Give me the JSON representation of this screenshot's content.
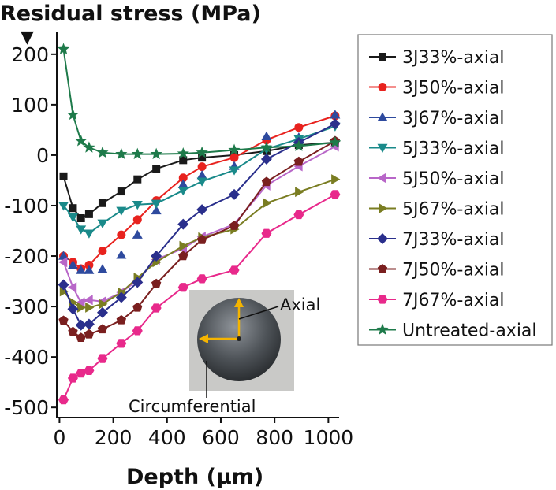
{
  "chart_data": {
    "type": "line",
    "ylabel": "Residual stress (MPa)",
    "xlabel": "Depth (µm)",
    "xlim": [
      -10,
      1040
    ],
    "ylim": [
      -520,
      245
    ],
    "xticks": [
      0,
      200,
      400,
      600,
      800,
      1000
    ],
    "xtick_labels": [
      "0",
      "200",
      "400",
      "600",
      "800",
      "1000"
    ],
    "yticks": [
      200,
      100,
      0,
      -100,
      -200,
      -300,
      -400,
      -500
    ],
    "ytick_labels": [
      "200",
      "100",
      "0",
      "-100",
      "-200",
      "-300",
      "-400",
      "-500"
    ],
    "y_marker": "▼",
    "legend_position": "right",
    "series": [
      {
        "name": "3J33%-axial",
        "color": "#1a1a1a",
        "marker": "square",
        "line": true,
        "points": [
          [
            15,
            -42
          ],
          [
            50,
            -105
          ],
          [
            80,
            -125
          ],
          [
            110,
            -117
          ],
          [
            160,
            -95
          ],
          [
            230,
            -72
          ],
          [
            290,
            -48
          ],
          [
            360,
            -27
          ],
          [
            460,
            -10
          ],
          [
            530,
            -5
          ],
          [
            650,
            0
          ],
          [
            770,
            8
          ],
          [
            890,
            20
          ],
          [
            1025,
            25
          ]
        ]
      },
      {
        "name": "3J50%-axial",
        "color": "#e8221e",
        "marker": "circle",
        "line": true,
        "points": [
          [
            15,
            -200
          ],
          [
            50,
            -212
          ],
          [
            80,
            -225
          ],
          [
            110,
            -218
          ],
          [
            160,
            -190
          ],
          [
            230,
            -158
          ],
          [
            290,
            -128
          ],
          [
            360,
            -90
          ],
          [
            460,
            -45
          ],
          [
            530,
            -23
          ],
          [
            650,
            -5
          ],
          [
            770,
            30
          ],
          [
            890,
            55
          ],
          [
            1025,
            78
          ]
        ]
      },
      {
        "name": "3J67%-axial",
        "color": "#2e4a9e",
        "marker": "triangle-up",
        "line": false,
        "points": [
          [
            15,
            -200
          ],
          [
            50,
            -218
          ],
          [
            80,
            -228
          ],
          [
            110,
            -228
          ],
          [
            160,
            -226
          ],
          [
            230,
            -198
          ],
          [
            290,
            -158
          ],
          [
            360,
            -110
          ],
          [
            460,
            -58
          ],
          [
            530,
            -40
          ],
          [
            650,
            -22
          ],
          [
            770,
            37
          ],
          [
            890,
            35
          ],
          [
            1025,
            80
          ]
        ]
      },
      {
        "name": "5J33%-axial",
        "color": "#1a8a8a",
        "marker": "triangle-down",
        "line": true,
        "points": [
          [
            15,
            -100
          ],
          [
            50,
            -123
          ],
          [
            80,
            -147
          ],
          [
            110,
            -155
          ],
          [
            160,
            -135
          ],
          [
            230,
            -110
          ],
          [
            290,
            -98
          ],
          [
            360,
            -96
          ],
          [
            460,
            -70
          ],
          [
            530,
            -52
          ],
          [
            650,
            -30
          ],
          [
            770,
            12
          ],
          [
            890,
            32
          ],
          [
            1025,
            57
          ]
        ]
      },
      {
        "name": "5J50%-axial",
        "color": "#b866c8",
        "marker": "triangle-left",
        "line": true,
        "points": [
          [
            15,
            -212
          ],
          [
            50,
            -262
          ],
          [
            80,
            -292
          ],
          [
            110,
            -287
          ],
          [
            160,
            -290
          ],
          [
            230,
            -272
          ],
          [
            290,
            -248
          ],
          [
            360,
            -207
          ],
          [
            460,
            -185
          ],
          [
            530,
            -162
          ],
          [
            650,
            -137
          ],
          [
            770,
            -60
          ],
          [
            890,
            -22
          ],
          [
            1025,
            17
          ]
        ]
      },
      {
        "name": "5J67%-axial",
        "color": "#7a7d22",
        "marker": "triangle-right",
        "line": true,
        "points": [
          [
            15,
            -270
          ],
          [
            50,
            -292
          ],
          [
            80,
            -302
          ],
          [
            110,
            -302
          ],
          [
            160,
            -295
          ],
          [
            230,
            -272
          ],
          [
            290,
            -243
          ],
          [
            360,
            -212
          ],
          [
            460,
            -180
          ],
          [
            530,
            -163
          ],
          [
            650,
            -147
          ],
          [
            770,
            -95
          ],
          [
            890,
            -73
          ],
          [
            1025,
            -48
          ]
        ]
      },
      {
        "name": "7J33%-axial",
        "color": "#2a2f8c",
        "marker": "diamond",
        "line": true,
        "points": [
          [
            15,
            -257
          ],
          [
            50,
            -305
          ],
          [
            80,
            -337
          ],
          [
            110,
            -335
          ],
          [
            160,
            -312
          ],
          [
            230,
            -282
          ],
          [
            290,
            -252
          ],
          [
            360,
            -200
          ],
          [
            460,
            -137
          ],
          [
            530,
            -108
          ],
          [
            650,
            -78
          ],
          [
            770,
            -8
          ],
          [
            890,
            25
          ],
          [
            1025,
            62
          ]
        ]
      },
      {
        "name": "7J50%-axial",
        "color": "#7a1f1f",
        "marker": "pentagon",
        "line": true,
        "points": [
          [
            15,
            -328
          ],
          [
            50,
            -350
          ],
          [
            80,
            -362
          ],
          [
            110,
            -355
          ],
          [
            160,
            -345
          ],
          [
            230,
            -327
          ],
          [
            290,
            -302
          ],
          [
            360,
            -255
          ],
          [
            460,
            -200
          ],
          [
            530,
            -168
          ],
          [
            650,
            -140
          ],
          [
            770,
            -53
          ],
          [
            890,
            -13
          ],
          [
            1025,
            28
          ]
        ]
      },
      {
        "name": "7J67%-axial",
        "color": "#e8298b",
        "marker": "hexagon",
        "line": true,
        "points": [
          [
            15,
            -485
          ],
          [
            50,
            -442
          ],
          [
            80,
            -432
          ],
          [
            110,
            -427
          ],
          [
            160,
            -403
          ],
          [
            230,
            -373
          ],
          [
            290,
            -348
          ],
          [
            360,
            -303
          ],
          [
            460,
            -262
          ],
          [
            530,
            -245
          ],
          [
            650,
            -228
          ],
          [
            770,
            -155
          ],
          [
            890,
            -118
          ],
          [
            1025,
            -78
          ]
        ]
      },
      {
        "name": "Untreated-axial",
        "color": "#1e7a4a",
        "marker": "star",
        "line": true,
        "points": [
          [
            15,
            210
          ],
          [
            50,
            80
          ],
          [
            80,
            28
          ],
          [
            110,
            15
          ],
          [
            160,
            5
          ],
          [
            230,
            2
          ],
          [
            290,
            2
          ],
          [
            360,
            2
          ],
          [
            460,
            3
          ],
          [
            530,
            5
          ],
          [
            650,
            10
          ],
          [
            770,
            15
          ],
          [
            890,
            18
          ],
          [
            1025,
            25
          ]
        ]
      }
    ],
    "inset": {
      "description_labels": [
        "Axial",
        "Circumferential"
      ],
      "arrow_color": "#f5b400"
    }
  }
}
